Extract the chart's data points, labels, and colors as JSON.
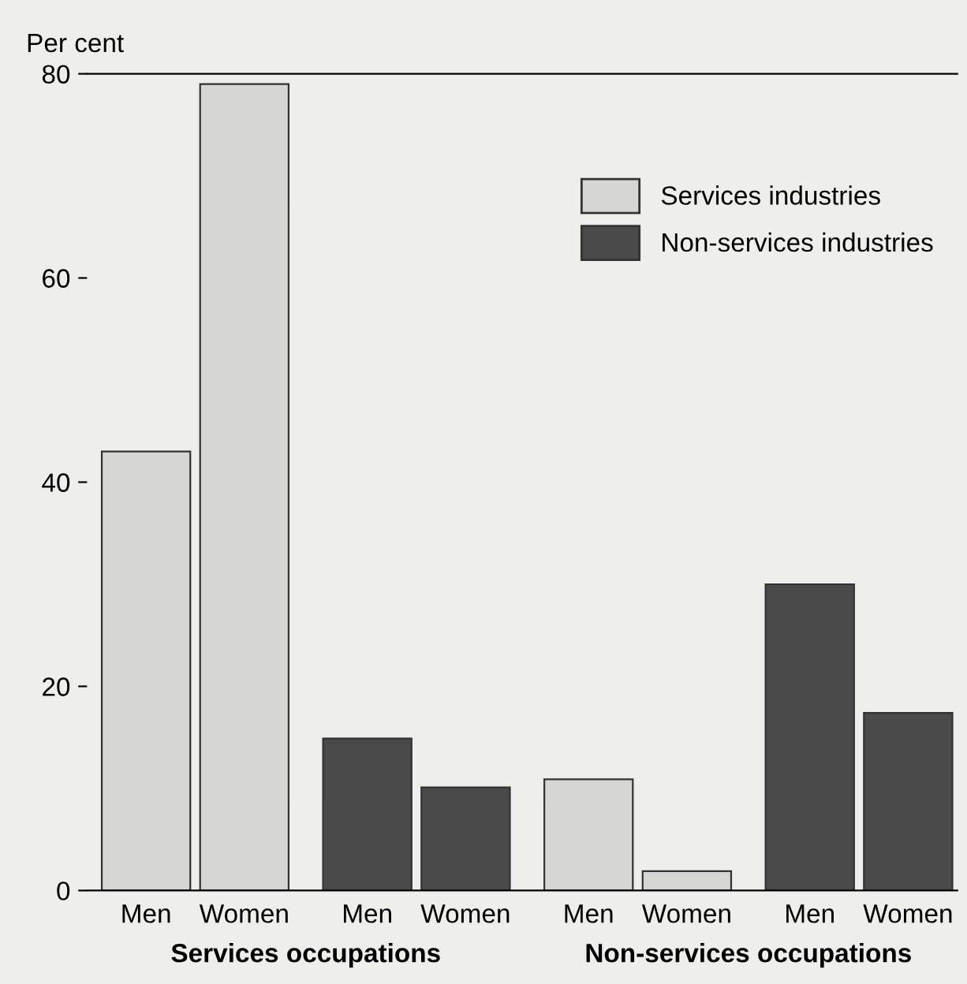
{
  "chart_data": {
    "type": "bar",
    "ylabel": "Per cent",
    "categories": [
      "Men",
      "Women",
      "Men",
      "Women",
      "Men",
      "Women",
      "Men",
      "Women"
    ],
    "series": [
      {
        "name": "Services industries",
        "color": "#d6d6d4",
        "values": [
          43.0,
          79.0,
          null,
          null,
          10.9,
          1.9,
          null,
          null
        ]
      },
      {
        "name": "Non-services industries",
        "color": "#4a4a4a",
        "values": [
          null,
          null,
          14.9,
          10.1,
          null,
          null,
          30.0,
          17.4
        ]
      }
    ],
    "ylim": [
      0,
      80
    ],
    "yticks": [
      0,
      20,
      40,
      60,
      80
    ],
    "grid": false,
    "legend": "top right",
    "annotations": [
      "Services occupations",
      "Non-services occupations"
    ]
  }
}
